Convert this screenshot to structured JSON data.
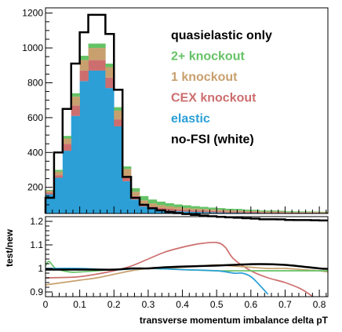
{
  "colors": {
    "two_plus_knockout": "#66c266",
    "one_knockout": "#c8a06e",
    "cex_knockout": "#cd6e6e",
    "elastic": "#2b9fd6",
    "no_fsi": "#000000",
    "quasielastic": "#000000"
  },
  "chart_data": [
    {
      "type": "bar",
      "stacked": true,
      "x_bin_edges": [
        0,
        0.025,
        0.05,
        0.075,
        0.1,
        0.125,
        0.15,
        0.175,
        0.2,
        0.225,
        0.25,
        0.275,
        0.3,
        0.325,
        0.35,
        0.375,
        0.4,
        0.425,
        0.45,
        0.475,
        0.5,
        0.525,
        0.55,
        0.575,
        0.6,
        0.625,
        0.65,
        0.675,
        0.7,
        0.725,
        0.75,
        0.775,
        0.8,
        0.825
      ],
      "series": [
        {
          "name": "elastic",
          "values": [
            110,
            205,
            360,
            560,
            760,
            820,
            820,
            720,
            500,
            185,
            80,
            40,
            27,
            20,
            16,
            13,
            11,
            9,
            8,
            7,
            6,
            5,
            5,
            4,
            4,
            3,
            3,
            3,
            2,
            2,
            2,
            2,
            2
          ]
        },
        {
          "name": "CEX knockout",
          "values": [
            10,
            15,
            40,
            60,
            60,
            60,
            60,
            60,
            40,
            30,
            20,
            15,
            13,
            12,
            11,
            10,
            9,
            8,
            8,
            7,
            7,
            6,
            6,
            5,
            5,
            4,
            4,
            4,
            3,
            3,
            3,
            3,
            2
          ]
        },
        {
          "name": "1 knockout",
          "values": [
            10,
            20,
            30,
            50,
            60,
            70,
            70,
            60,
            50,
            40,
            25,
            20,
            18,
            16,
            14,
            13,
            12,
            11,
            10,
            9,
            8,
            7,
            6,
            5,
            5,
            4,
            4,
            4,
            3,
            3,
            3,
            3,
            3
          ]
        },
        {
          "name": "2+ knockout",
          "values": [
            5,
            10,
            15,
            20,
            25,
            25,
            25,
            20,
            20,
            15,
            20,
            25,
            22,
            20,
            18,
            16,
            15,
            14,
            12,
            11,
            10,
            9,
            9,
            8,
            7,
            6,
            6,
            5,
            5,
            4,
            4,
            3,
            3
          ]
        }
      ],
      "total_line": {
        "name": "quasielastic only",
        "values": [
          140,
          400,
          650,
          910,
          1090,
          1190,
          1190,
          1080,
          760,
          260,
          140,
          100,
          80,
          68,
          59,
          52,
          47,
          42,
          38,
          34,
          31,
          28,
          26,
          23,
          21,
          17,
          17,
          16,
          13,
          12,
          12,
          11,
          10
        ]
      },
      "ylim": [
        50,
        1230
      ],
      "xlim": [
        0,
        0.825
      ],
      "y_ticks": [
        200,
        400,
        600,
        800,
        1000,
        1200
      ],
      "x_ticks": [
        0,
        0.1,
        0.2,
        0.3,
        0.4,
        0.5,
        0.6,
        0.7,
        0.8
      ],
      "legend": [
        "quasielastic only",
        "2+ knockout",
        "1 knockout",
        "CEX knockout",
        "elastic",
        "no-FSI (white)"
      ],
      "legend_position": "top-right"
    },
    {
      "type": "line",
      "ylabel": "test/new",
      "xlabel": "transverse momentum imbalance delta pT",
      "ylim": [
        0.88,
        1.22
      ],
      "xlim": [
        0,
        0.825
      ],
      "y_ticks": [
        0.9,
        1,
        1.1,
        1.2
      ],
      "x_ticks": [
        0,
        0.1,
        0.2,
        0.3,
        0.4,
        0.5,
        0.6,
        0.7,
        0.8
      ],
      "series": [
        {
          "name": "CEX knockout",
          "x": [
            0,
            0.1,
            0.2,
            0.25,
            0.3,
            0.35,
            0.4,
            0.45,
            0.5,
            0.525,
            0.55,
            0.6,
            0.65,
            0.7,
            0.75,
            0.8
          ],
          "y": [
            0.96,
            0.965,
            0.99,
            1.01,
            1.04,
            1.07,
            1.09,
            1.105,
            1.11,
            1.09,
            1.04,
            0.99,
            0.96,
            0.94,
            0.91,
            0.86
          ]
        },
        {
          "name": "1 knockout",
          "x": [
            0,
            0.05,
            0.1,
            0.15,
            0.2,
            0.25,
            0.3,
            0.35,
            0.4,
            0.45,
            0.5,
            0.55,
            0.6,
            0.65,
            0.7,
            0.75,
            0.8,
            0.825
          ],
          "y": [
            0.93,
            0.94,
            0.95,
            0.96,
            0.975,
            0.99,
            1.0,
            1.0,
            1.005,
            1.01,
            1.015,
            1.01,
            1.005,
            1.0,
            1.0,
            0.995,
            0.99,
            0.985
          ]
        },
        {
          "name": "2+ knockout",
          "x": [
            0,
            0.01,
            0.03,
            0.07,
            0.1,
            0.15,
            0.2,
            0.3,
            0.4,
            0.5,
            0.6,
            0.7,
            0.8,
            0.825
          ],
          "y": [
            1.01,
            1.03,
            1.0,
            0.985,
            0.985,
            0.99,
            0.995,
            1.0,
            0.995,
            0.99,
            0.99,
            0.99,
            0.99,
            0.99
          ]
        },
        {
          "name": "elastic",
          "x": [
            0,
            0.1,
            0.2,
            0.3,
            0.4,
            0.5,
            0.55,
            0.575,
            0.6,
            0.625,
            0.65
          ],
          "y": [
            1.0,
            1.0,
            0.995,
            1.0,
            0.995,
            0.99,
            0.98,
            0.98,
            0.965,
            0.93,
            0.89
          ]
        },
        {
          "name": "quasielastic only",
          "x": [
            0,
            0.1,
            0.2,
            0.25,
            0.3,
            0.35,
            0.4,
            0.45,
            0.5,
            0.55,
            0.6,
            0.65,
            0.7,
            0.75,
            0.8,
            0.825
          ],
          "y": [
            0.995,
            0.995,
            0.995,
            1.0,
            1.0,
            1.005,
            1.008,
            1.01,
            1.012,
            1.015,
            1.018,
            1.018,
            1.015,
            1.008,
            1.0,
            0.998
          ]
        }
      ]
    }
  ]
}
